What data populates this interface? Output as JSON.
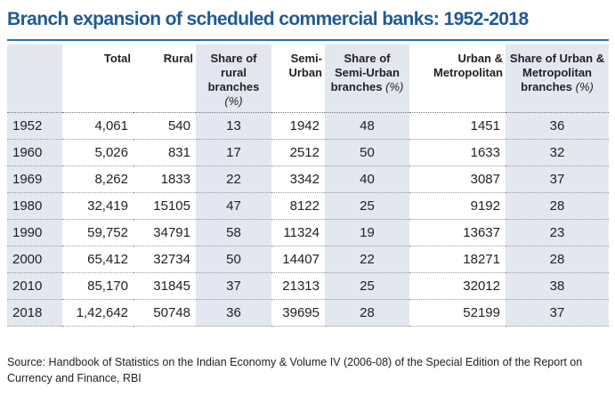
{
  "title": "Branch expansion of scheduled commercial banks: 1952-2018",
  "table": {
    "header": [
      {
        "text": "Total"
      },
      {
        "text": "Rural"
      },
      {
        "text": "Share of rural branches",
        "unit": "(%)"
      },
      {
        "text": "Semi-Urban"
      },
      {
        "text": "Share of Semi-Urban branches",
        "unit": "(%)"
      },
      {
        "text": "Urban & Metropolitan"
      },
      {
        "text": "Share of Urban & Metropolitan branches",
        "unit": "(%)"
      }
    ],
    "rows": [
      [
        "1952",
        "4,061",
        "540",
        "13",
        "1942",
        "48",
        "1451",
        "36"
      ],
      [
        "1960",
        "5,026",
        "831",
        "17",
        "2512",
        "50",
        "1633",
        "32"
      ],
      [
        "1969",
        "8,262",
        "1833",
        "22",
        "3342",
        "40",
        "3087",
        "37"
      ],
      [
        "1980",
        "32,419",
        "15105",
        "47",
        "8122",
        "25",
        "9192",
        "28"
      ],
      [
        "1990",
        "59,752",
        "34791",
        "58",
        "11324",
        "19",
        "13637",
        "23"
      ],
      [
        "2000",
        "65,412",
        "32734",
        "50",
        "14407",
        "22",
        "18271",
        "28"
      ],
      [
        "2010",
        "85,170",
        "31845",
        "37",
        "21313",
        "25",
        "32012",
        "38"
      ],
      [
        "2018",
        "1,42,642",
        "50748",
        "36",
        "39695",
        "28",
        "52199",
        "37"
      ]
    ]
  },
  "source": "Source: Handbook of Statistics on the Indian Economy & Volume IV (2006-08) of the Special Edition of the Report on Currency and Finance, RBI"
}
